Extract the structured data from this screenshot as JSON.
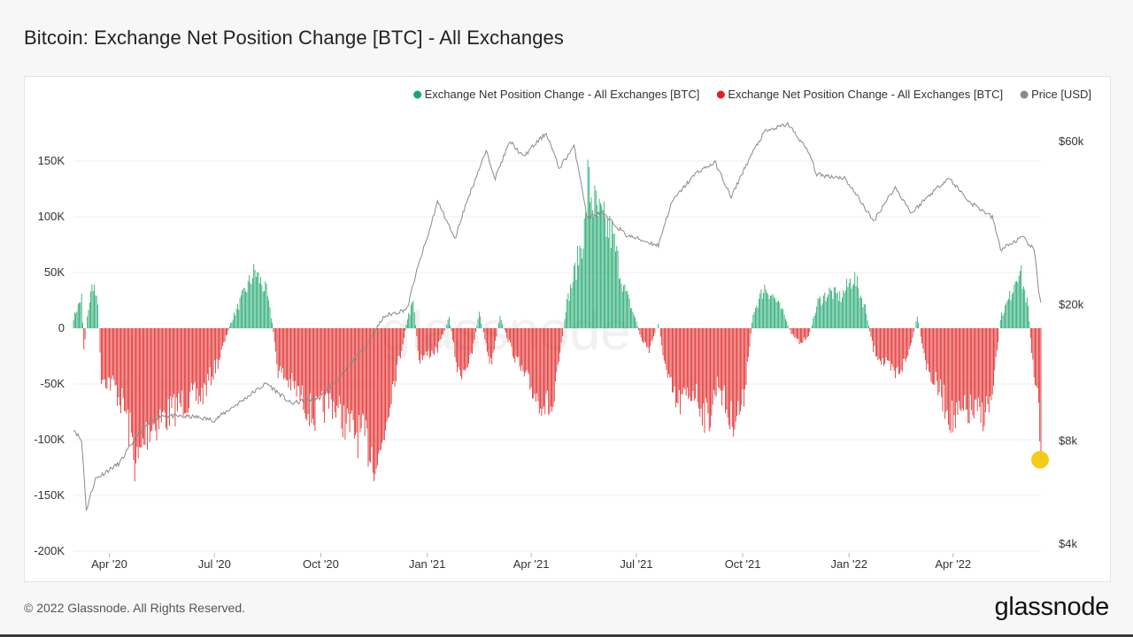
{
  "page": {
    "title": "Bitcoin: Exchange Net Position Change [BTC] - All Exchanges",
    "copyright": "© 2022 Glassnode. All Rights Reserved.",
    "brand": "glassnode",
    "watermark": "glassnode"
  },
  "colors": {
    "positive": "#1aa56a",
    "negative": "#e01f1f",
    "price": "#8a8a8a",
    "highlight": "#f5c400"
  },
  "chart_data": {
    "type": "bar",
    "title": "Bitcoin: Exchange Net Position Change [BTC] - All Exchanges",
    "legend": [
      {
        "name": "Exchange Net Position Change - All Exchanges [BTC]",
        "color": "#1aa56a"
      },
      {
        "name": "Exchange Net Position Change - All Exchanges [BTC]",
        "color": "#e01f1f"
      },
      {
        "name": "Price [USD]",
        "color": "#8a8a8a"
      }
    ],
    "legend_position": "top-right",
    "x_range": [
      "2020-03-01",
      "2022-06-16"
    ],
    "x_ticks": [
      {
        "label": "Apr '20",
        "date": "2020-04-01"
      },
      {
        "label": "Jul '20",
        "date": "2020-07-01"
      },
      {
        "label": "Oct '20",
        "date": "2020-10-01"
      },
      {
        "label": "Jan '21",
        "date": "2021-01-01"
      },
      {
        "label": "Apr '21",
        "date": "2021-04-01"
      },
      {
        "label": "Jul '21",
        "date": "2021-07-01"
      },
      {
        "label": "Oct '21",
        "date": "2021-10-01"
      },
      {
        "label": "Jan '22",
        "date": "2022-01-01"
      },
      {
        "label": "Apr '22",
        "date": "2022-04-01"
      }
    ],
    "y_left": {
      "ylim": [
        -200000,
        150000
      ],
      "ticks": [
        {
          "label": "150K",
          "value": 150000
        },
        {
          "label": "100K",
          "value": 100000
        },
        {
          "label": "50K",
          "value": 50000
        },
        {
          "label": "0",
          "value": 0
        },
        {
          "label": "-50K",
          "value": -50000
        },
        {
          "label": "-100K",
          "value": -100000
        },
        {
          "label": "-150K",
          "value": -150000
        },
        {
          "label": "-200K",
          "value": -200000
        }
      ]
    },
    "y_right": {
      "scale": "log",
      "ticks": [
        {
          "label": "$60k",
          "value": 60000
        },
        {
          "label": "$20k",
          "value": 20000
        },
        {
          "label": "$8k",
          "value": 8000
        },
        {
          "label": "$4k",
          "value": 4000
        }
      ]
    },
    "grid": true,
    "net_position_keypoints": [
      [
        "2020-03-01",
        10000
      ],
      [
        "2020-03-08",
        30000
      ],
      [
        "2020-03-10",
        -20000
      ],
      [
        "2020-03-14",
        20000
      ],
      [
        "2020-03-18",
        45000
      ],
      [
        "2020-03-22",
        20000
      ],
      [
        "2020-03-25",
        -45000
      ],
      [
        "2020-04-05",
        -55000
      ],
      [
        "2020-04-15",
        -80000
      ],
      [
        "2020-04-25",
        -135000
      ],
      [
        "2020-05-05",
        -95000
      ],
      [
        "2020-05-20",
        -85000
      ],
      [
        "2020-06-05",
        -70000
      ],
      [
        "2020-06-20",
        -65000
      ],
      [
        "2020-07-05",
        -30000
      ],
      [
        "2020-07-15",
        5000
      ],
      [
        "2020-07-25",
        30000
      ],
      [
        "2020-08-05",
        55000
      ],
      [
        "2020-08-15",
        35000
      ],
      [
        "2020-08-20",
        5000
      ],
      [
        "2020-08-25",
        -40000
      ],
      [
        "2020-09-10",
        -60000
      ],
      [
        "2020-09-25",
        -85000
      ],
      [
        "2020-10-10",
        -70000
      ],
      [
        "2020-10-25",
        -95000
      ],
      [
        "2020-11-10",
        -110000
      ],
      [
        "2020-11-20",
        -130000
      ],
      [
        "2020-12-01",
        -60000
      ],
      [
        "2020-12-10",
        -20000
      ],
      [
        "2020-12-15",
        10000
      ],
      [
        "2020-12-20",
        25000
      ],
      [
        "2020-12-25",
        -30000
      ],
      [
        "2021-01-10",
        -20000
      ],
      [
        "2021-01-20",
        10000
      ],
      [
        "2021-01-28",
        -45000
      ],
      [
        "2021-02-08",
        -30000
      ],
      [
        "2021-02-15",
        15000
      ],
      [
        "2021-02-25",
        -35000
      ],
      [
        "2021-03-05",
        10000
      ],
      [
        "2021-03-15",
        -20000
      ],
      [
        "2021-03-25",
        -45000
      ],
      [
        "2021-04-05",
        -65000
      ],
      [
        "2021-04-20",
        -80000
      ],
      [
        "2021-05-01",
        20000
      ],
      [
        "2021-05-10",
        60000
      ],
      [
        "2021-05-18",
        100000
      ],
      [
        "2021-05-20",
        140000
      ],
      [
        "2021-05-28",
        110000
      ],
      [
        "2021-06-10",
        90000
      ],
      [
        "2021-06-20",
        40000
      ],
      [
        "2021-06-30",
        10000
      ],
      [
        "2021-07-05",
        -10000
      ],
      [
        "2021-07-12",
        -20000
      ],
      [
        "2021-07-20",
        5000
      ],
      [
        "2021-07-28",
        -50000
      ],
      [
        "2021-08-05",
        -75000
      ],
      [
        "2021-08-20",
        -60000
      ],
      [
        "2021-09-01",
        -90000
      ],
      [
        "2021-09-10",
        -50000
      ],
      [
        "2021-09-20",
        -90000
      ],
      [
        "2021-10-01",
        -75000
      ],
      [
        "2021-10-10",
        15000
      ],
      [
        "2021-10-20",
        40000
      ],
      [
        "2021-10-28",
        30000
      ],
      [
        "2021-11-05",
        15000
      ],
      [
        "2021-11-12",
        -5000
      ],
      [
        "2021-11-20",
        -15000
      ],
      [
        "2021-11-28",
        -5000
      ],
      [
        "2021-12-05",
        25000
      ],
      [
        "2021-12-15",
        35000
      ],
      [
        "2021-12-25",
        30000
      ],
      [
        "2022-01-05",
        50000
      ],
      [
        "2022-01-15",
        20000
      ],
      [
        "2022-01-22",
        -20000
      ],
      [
        "2022-02-01",
        -35000
      ],
      [
        "2022-02-10",
        -45000
      ],
      [
        "2022-02-20",
        -30000
      ],
      [
        "2022-03-01",
        10000
      ],
      [
        "2022-03-10",
        -40000
      ],
      [
        "2022-03-20",
        -60000
      ],
      [
        "2022-04-01",
        -90000
      ],
      [
        "2022-04-15",
        -80000
      ],
      [
        "2022-04-25",
        -85000
      ],
      [
        "2022-05-05",
        -70000
      ],
      [
        "2022-05-12",
        10000
      ],
      [
        "2022-05-20",
        30000
      ],
      [
        "2022-05-28",
        60000
      ],
      [
        "2022-06-05",
        20000
      ],
      [
        "2022-06-10",
        -50000
      ],
      [
        "2022-06-14",
        -75000
      ],
      [
        "2022-06-16",
        -118000
      ]
    ],
    "price_keypoints": [
      [
        "2020-03-01",
        8700
      ],
      [
        "2020-03-08",
        8000
      ],
      [
        "2020-03-12",
        5000
      ],
      [
        "2020-03-20",
        6200
      ],
      [
        "2020-04-10",
        6900
      ],
      [
        "2020-04-30",
        8700
      ],
      [
        "2020-05-15",
        9500
      ],
      [
        "2020-06-15",
        9400
      ],
      [
        "2020-07-01",
        9200
      ],
      [
        "2020-07-25",
        10500
      ],
      [
        "2020-08-15",
        11800
      ],
      [
        "2020-09-05",
        10300
      ],
      [
        "2020-09-30",
        10700
      ],
      [
        "2020-10-20",
        12500
      ],
      [
        "2020-11-10",
        15300
      ],
      [
        "2020-11-25",
        18500
      ],
      [
        "2020-12-15",
        19500
      ],
      [
        "2021-01-02",
        32000
      ],
      [
        "2021-01-10",
        40000
      ],
      [
        "2021-01-25",
        31000
      ],
      [
        "2021-02-10",
        45000
      ],
      [
        "2021-02-21",
        56000
      ],
      [
        "2021-03-01",
        47000
      ],
      [
        "2021-03-14",
        60000
      ],
      [
        "2021-03-25",
        54000
      ],
      [
        "2021-04-14",
        63500
      ],
      [
        "2021-04-25",
        50000
      ],
      [
        "2021-05-08",
        58000
      ],
      [
        "2021-05-19",
        36000
      ],
      [
        "2021-06-01",
        37000
      ],
      [
        "2021-06-22",
        32000
      ],
      [
        "2021-07-20",
        29800
      ],
      [
        "2021-08-01",
        40000
      ],
      [
        "2021-08-23",
        49000
      ],
      [
        "2021-09-07",
        52000
      ],
      [
        "2021-09-21",
        41000
      ],
      [
        "2021-10-05",
        52000
      ],
      [
        "2021-10-20",
        64000
      ],
      [
        "2021-11-09",
        67500
      ],
      [
        "2021-11-28",
        55000
      ],
      [
        "2021-12-04",
        48000
      ],
      [
        "2021-12-28",
        47000
      ],
      [
        "2022-01-05",
        43000
      ],
      [
        "2022-01-22",
        35000
      ],
      [
        "2022-02-10",
        44000
      ],
      [
        "2022-02-24",
        37000
      ],
      [
        "2022-03-28",
        47000
      ],
      [
        "2022-04-15",
        40000
      ],
      [
        "2022-05-05",
        36000
      ],
      [
        "2022-05-12",
        29000
      ],
      [
        "2022-05-31",
        31500
      ],
      [
        "2022-06-10",
        29000
      ],
      [
        "2022-06-14",
        22000
      ],
      [
        "2022-06-16",
        20500
      ]
    ],
    "highlight_point": {
      "date": "2022-06-16",
      "value": -118000
    }
  }
}
